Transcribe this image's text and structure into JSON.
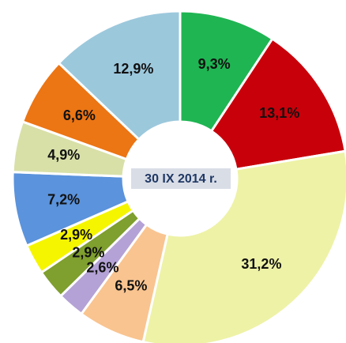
{
  "chart_data": {
    "type": "donut",
    "center_label": "30 IX 2014 r.",
    "values": [
      9.3,
      13.1,
      31.2,
      6.5,
      2.6,
      2.9,
      2.9,
      7.2,
      4.9,
      6.6,
      12.9
    ],
    "value_labels": [
      "9,3%",
      "13,1%",
      "31,2%",
      "6,5%",
      "2,6%",
      "2,9%",
      "2,9%",
      "7,2%",
      "4,9%",
      "6,6%",
      "12,9%"
    ],
    "colors": [
      "#1fb553",
      "#c8000a",
      "#eef2a6",
      "#f9c490",
      "#b4a2d6",
      "#7f9f2e",
      "#f5f500",
      "#5b93dc",
      "#d8e0a8",
      "#ec7514",
      "#9cc8dc"
    ]
  }
}
